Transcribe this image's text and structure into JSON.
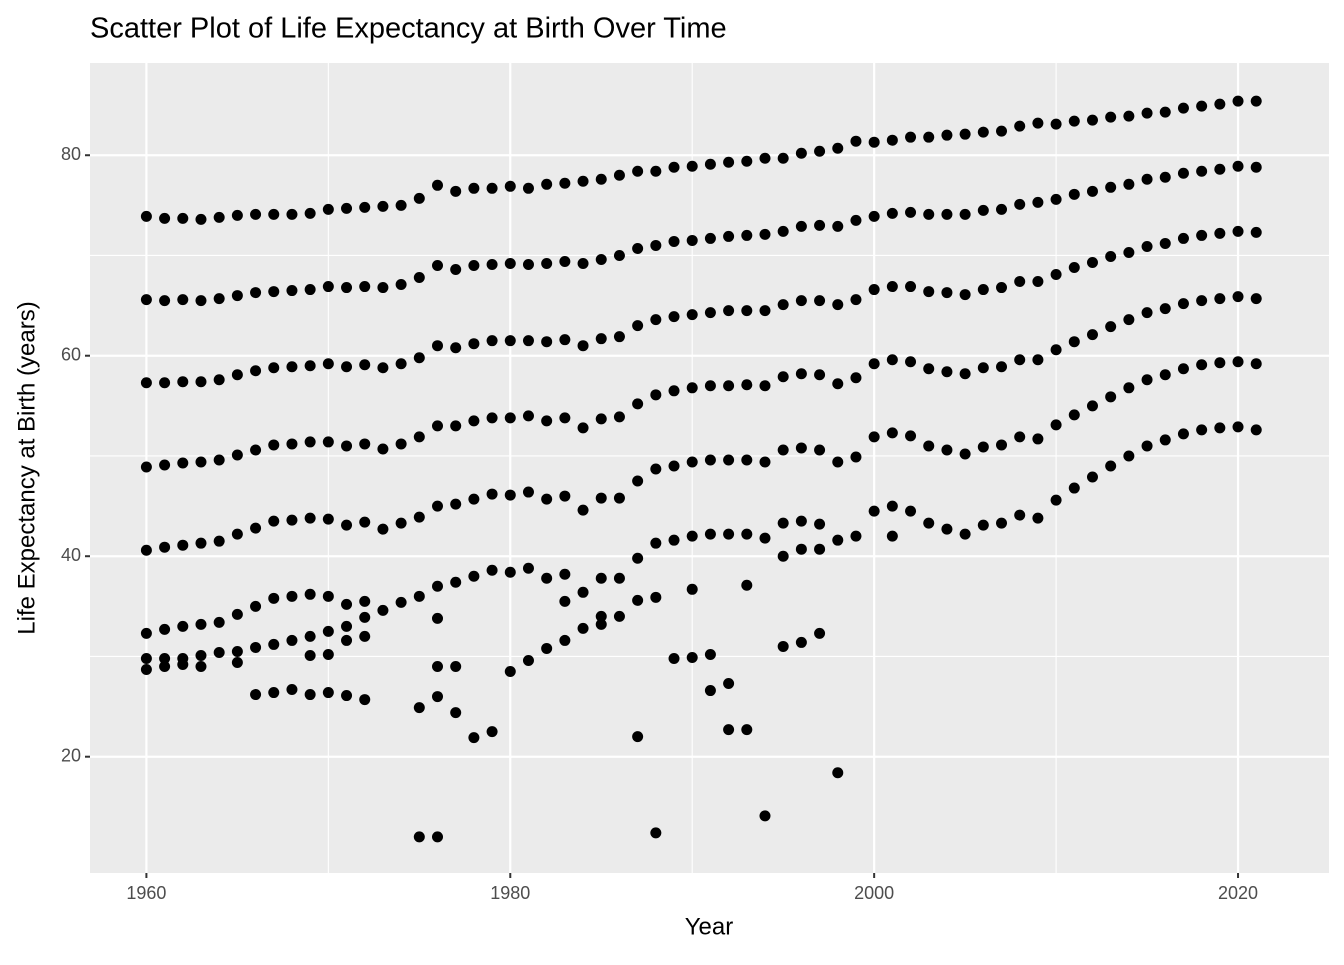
{
  "chart_data": {
    "type": "scatter",
    "title": "Scatter Plot of Life Expectancy at Birth Over Time",
    "x_label": "Year",
    "y_label": "Life Expectancy at Birth (years)",
    "color": "#000000",
    "grid": true,
    "xlim": [
      1956.9,
      2025.0
    ],
    "ylim": [
      8.4,
      89.2
    ],
    "xticks": [
      1960,
      1980,
      2000,
      2020
    ],
    "yticks": [
      20,
      40,
      60,
      80
    ],
    "x": [
      1960,
      1960,
      1960,
      1960,
      1960,
      1960,
      1960,
      1960,
      1961,
      1961,
      1961,
      1961,
      1961,
      1961,
      1961,
      1961,
      1962,
      1962,
      1962,
      1962,
      1962,
      1962,
      1962,
      1962,
      1963,
      1963,
      1963,
      1963,
      1963,
      1963,
      1963,
      1963,
      1964,
      1964,
      1964,
      1964,
      1964,
      1964,
      1964,
      1965,
      1965,
      1965,
      1965,
      1965,
      1965,
      1965,
      1965,
      1966,
      1966,
      1966,
      1966,
      1966,
      1966,
      1966,
      1966,
      1967,
      1967,
      1967,
      1967,
      1967,
      1967,
      1967,
      1967,
      1968,
      1968,
      1968,
      1968,
      1968,
      1968,
      1968,
      1968,
      1969,
      1969,
      1969,
      1969,
      1969,
      1969,
      1969,
      1969,
      1969,
      1970,
      1970,
      1970,
      1970,
      1970,
      1970,
      1970,
      1970,
      1970,
      1971,
      1971,
      1971,
      1971,
      1971,
      1971,
      1971,
      1971,
      1971,
      1972,
      1972,
      1972,
      1972,
      1972,
      1972,
      1972,
      1972,
      1972,
      1973,
      1973,
      1973,
      1973,
      1973,
      1973,
      1974,
      1974,
      1974,
      1974,
      1974,
      1974,
      1975,
      1975,
      1975,
      1975,
      1975,
      1975,
      1975,
      1975,
      1976,
      1976,
      1976,
      1976,
      1976,
      1976,
      1976,
      1976,
      1976,
      1976,
      1977,
      1977,
      1977,
      1977,
      1977,
      1977,
      1977,
      1977,
      1978,
      1978,
      1978,
      1978,
      1978,
      1978,
      1978,
      1979,
      1979,
      1979,
      1979,
      1979,
      1979,
      1979,
      1980,
      1980,
      1980,
      1980,
      1980,
      1980,
      1980,
      1981,
      1981,
      1981,
      1981,
      1981,
      1981,
      1981,
      1982,
      1982,
      1982,
      1982,
      1982,
      1982,
      1982,
      1983,
      1983,
      1983,
      1983,
      1983,
      1983,
      1983,
      1983,
      1984,
      1984,
      1984,
      1984,
      1984,
      1984,
      1984,
      1985,
      1985,
      1985,
      1985,
      1985,
      1985,
      1985,
      1985,
      1986,
      1986,
      1986,
      1986,
      1986,
      1986,
      1986,
      1987,
      1987,
      1987,
      1987,
      1987,
      1987,
      1987,
      1987,
      1988,
      1988,
      1988,
      1988,
      1988,
      1988,
      1988,
      1988,
      1989,
      1989,
      1989,
      1989,
      1989,
      1989,
      1989,
      1990,
      1990,
      1990,
      1990,
      1990,
      1990,
      1990,
      1990,
      1991,
      1991,
      1991,
      1991,
      1991,
      1991,
      1991,
      1991,
      1992,
      1992,
      1992,
      1992,
      1992,
      1992,
      1992,
      1992,
      1993,
      1993,
      1993,
      1993,
      1993,
      1993,
      1993,
      1993,
      1994,
      1994,
      1994,
      1994,
      1994,
      1994,
      1994,
      1995,
      1995,
      1995,
      1995,
      1995,
      1995,
      1995,
      1995,
      1996,
      1996,
      1996,
      1996,
      1996,
      1996,
      1996,
      1996,
      1997,
      1997,
      1997,
      1997,
      1997,
      1997,
      1997,
      1997,
      1998,
      1998,
      1998,
      1998,
      1998,
      1998,
      1998,
      1999,
      1999,
      1999,
      1999,
      1999,
      1999,
      2000,
      2000,
      2000,
      2000,
      2000,
      2000,
      2001,
      2001,
      2001,
      2001,
      2001,
      2001,
      2001,
      2002,
      2002,
      2002,
      2002,
      2002,
      2002,
      2003,
      2003,
      2003,
      2003,
      2003,
      2003,
      2004,
      2004,
      2004,
      2004,
      2004,
      2004,
      2005,
      2005,
      2005,
      2005,
      2005,
      2005,
      2006,
      2006,
      2006,
      2006,
      2006,
      2006,
      2007,
      2007,
      2007,
      2007,
      2007,
      2007,
      2008,
      2008,
      2008,
      2008,
      2008,
      2008,
      2009,
      2009,
      2009,
      2009,
      2009,
      2009,
      2010,
      2010,
      2010,
      2010,
      2010,
      2010,
      2011,
      2011,
      2011,
      2011,
      2011,
      2011,
      2012,
      2012,
      2012,
      2012,
      2012,
      2012,
      2013,
      2013,
      2013,
      2013,
      2013,
      2013,
      2014,
      2014,
      2014,
      2014,
      2014,
      2014,
      2015,
      2015,
      2015,
      2015,
      2015,
      2015,
      2016,
      2016,
      2016,
      2016,
      2016,
      2016,
      2017,
      2017,
      2017,
      2017,
      2017,
      2017,
      2018,
      2018,
      2018,
      2018,
      2018,
      2018,
      2019,
      2019,
      2019,
      2019,
      2019,
      2019,
      2020,
      2020,
      2020,
      2020,
      2020,
      2020,
      2021,
      2021,
      2021,
      2021,
      2021,
      2021
    ],
    "values": [
      73.9,
      65.6,
      57.3,
      48.9,
      40.6,
      32.3,
      29.8,
      28.7,
      73.7,
      65.5,
      57.3,
      49.1,
      40.9,
      32.7,
      29.8,
      29.0,
      73.7,
      65.6,
      57.4,
      49.3,
      41.1,
      33.0,
      29.8,
      29.2,
      73.6,
      65.5,
      57.4,
      49.4,
      41.3,
      33.2,
      30.1,
      29.0,
      73.8,
      65.7,
      57.6,
      49.6,
      41.5,
      33.4,
      30.4,
      74.0,
      66.0,
      58.1,
      50.1,
      42.2,
      34.2,
      30.5,
      29.4,
      74.1,
      66.3,
      58.5,
      50.6,
      42.8,
      35.0,
      30.9,
      26.2,
      74.1,
      66.4,
      58.8,
      51.1,
      43.5,
      35.8,
      31.2,
      26.4,
      74.1,
      66.5,
      58.9,
      51.2,
      43.6,
      36.0,
      31.6,
      26.7,
      74.2,
      66.6,
      59.0,
      51.4,
      43.8,
      36.2,
      32.0,
      30.1,
      26.2,
      74.6,
      66.9,
      59.2,
      51.4,
      43.7,
      36.0,
      32.5,
      30.2,
      26.4,
      74.7,
      66.8,
      58.9,
      51.0,
      43.1,
      35.2,
      33.0,
      31.6,
      26.1,
      74.8,
      66.9,
      59.1,
      51.2,
      43.4,
      35.5,
      33.9,
      32.0,
      25.7,
      74.9,
      66.8,
      58.8,
      50.7,
      42.7,
      34.6,
      75.0,
      67.1,
      59.2,
      51.2,
      43.3,
      35.4,
      75.7,
      67.8,
      59.8,
      51.9,
      43.9,
      36.0,
      24.9,
      12.0,
      77.0,
      69.0,
      61.0,
      53.0,
      45.0,
      37.0,
      33.8,
      29.0,
      26.0,
      12.0,
      76.4,
      68.6,
      60.8,
      53.0,
      45.2,
      37.4,
      29.0,
      24.4,
      76.7,
      69.0,
      61.2,
      53.5,
      45.7,
      38.0,
      21.9,
      76.7,
      69.1,
      61.5,
      53.8,
      46.2,
      38.6,
      22.5,
      76.9,
      69.2,
      61.5,
      53.8,
      46.1,
      38.4,
      28.5,
      76.7,
      69.1,
      61.5,
      54.0,
      46.4,
      38.8,
      29.6,
      77.1,
      69.2,
      61.4,
      53.5,
      45.7,
      37.8,
      30.8,
      77.2,
      69.4,
      61.6,
      53.8,
      46.0,
      38.2,
      35.5,
      31.6,
      77.4,
      69.2,
      61.0,
      52.8,
      44.6,
      36.4,
      32.8,
      77.6,
      69.6,
      61.7,
      53.7,
      45.8,
      37.8,
      34.0,
      33.2,
      78.0,
      70.0,
      61.9,
      53.9,
      45.8,
      37.8,
      34.0,
      78.4,
      70.7,
      63.0,
      55.2,
      47.5,
      39.8,
      35.6,
      22.0,
      78.4,
      71.0,
      63.6,
      56.1,
      48.7,
      41.3,
      35.9,
      12.4,
      78.8,
      71.4,
      63.9,
      56.5,
      49.0,
      41.6,
      29.8,
      78.9,
      71.5,
      64.1,
      56.8,
      49.4,
      42.0,
      36.7,
      29.9,
      79.1,
      71.7,
      64.3,
      57.0,
      49.6,
      42.2,
      30.2,
      26.6,
      79.3,
      71.9,
      64.5,
      57.0,
      49.6,
      42.2,
      27.3,
      22.7,
      79.4,
      72.0,
      64.5,
      57.1,
      49.6,
      42.2,
      37.1,
      22.7,
      79.7,
      72.1,
      64.5,
      57.0,
      49.4,
      41.8,
      14.1,
      79.7,
      72.4,
      65.1,
      57.9,
      50.6,
      43.3,
      40.0,
      31.0,
      80.2,
      72.9,
      65.5,
      58.2,
      50.8,
      43.5,
      40.7,
      31.4,
      80.4,
      73.0,
      65.5,
      58.1,
      50.6,
      43.2,
      40.7,
      32.3,
      80.7,
      72.9,
      65.1,
      57.2,
      49.4,
      41.6,
      18.4,
      81.4,
      73.5,
      65.6,
      57.8,
      49.9,
      42.0,
      81.3,
      73.9,
      66.6,
      59.2,
      51.9,
      44.5,
      81.5,
      74.2,
      66.9,
      59.6,
      52.3,
      45.0,
      42.0,
      81.8,
      74.3,
      66.9,
      59.4,
      52.0,
      44.5,
      81.8,
      74.1,
      66.4,
      58.7,
      51.0,
      43.3,
      82.0,
      74.1,
      66.3,
      58.4,
      50.6,
      42.7,
      82.1,
      74.1,
      66.1,
      58.2,
      50.2,
      42.2,
      82.3,
      74.5,
      66.6,
      58.8,
      50.9,
      43.1,
      82.4,
      74.6,
      66.8,
      58.9,
      51.1,
      43.3,
      82.9,
      75.1,
      67.4,
      59.6,
      51.9,
      44.1,
      83.2,
      75.3,
      67.4,
      59.6,
      51.7,
      43.8,
      83.1,
      75.6,
      68.1,
      60.6,
      53.1,
      45.6,
      83.4,
      76.1,
      68.8,
      61.4,
      54.1,
      46.8,
      83.5,
      76.4,
      69.3,
      62.1,
      55.0,
      47.9,
      83.8,
      76.8,
      69.9,
      62.9,
      55.9,
      49.0,
      83.9,
      77.1,
      70.3,
      63.6,
      56.8,
      50.0,
      84.2,
      77.6,
      70.9,
      64.3,
      57.6,
      51.0,
      84.3,
      77.8,
      71.2,
      64.7,
      58.1,
      51.6,
      84.7,
      78.2,
      71.7,
      65.2,
      58.7,
      52.2,
      84.9,
      78.4,
      72.0,
      65.5,
      59.1,
      52.6,
      85.1,
      78.6,
      72.2,
      65.7,
      59.3,
      52.8,
      85.4,
      78.9,
      72.4,
      65.9,
      59.4,
      52.9,
      85.4,
      78.8,
      72.3,
      65.7,
      59.2,
      52.6
    ]
  }
}
